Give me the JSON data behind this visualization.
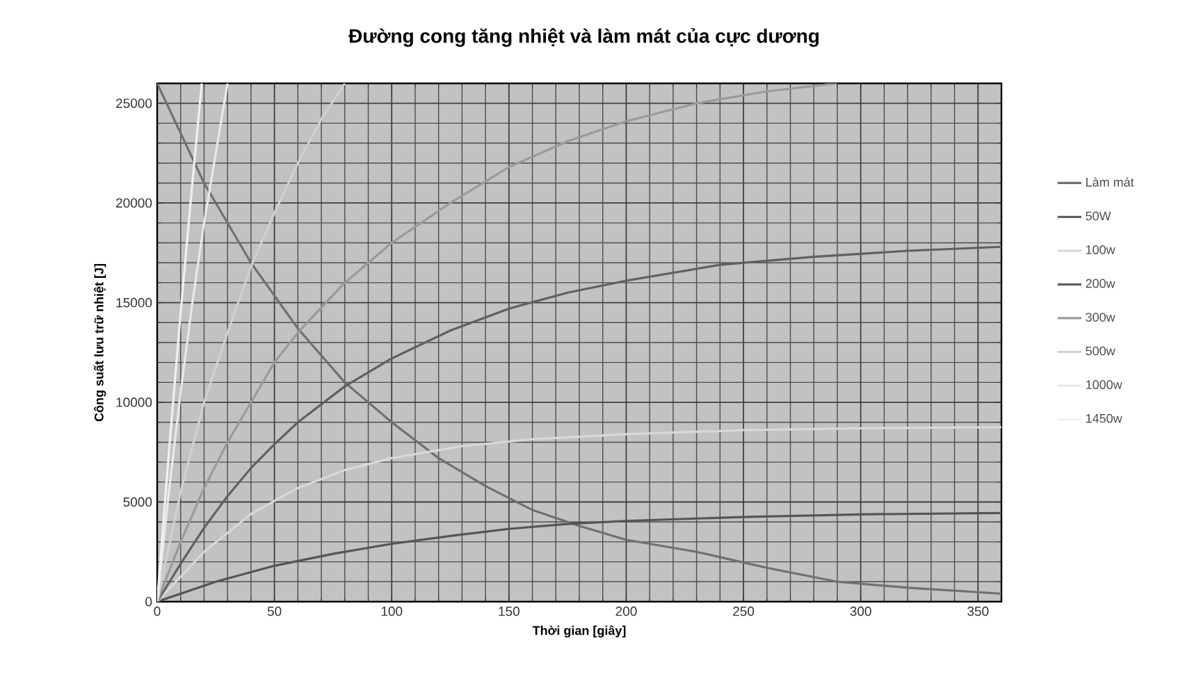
{
  "chart_data": {
    "type": "line",
    "title": "Đường cong tăng nhiệt và làm mát của cực dương",
    "xlabel": "Thời gian [giây]",
    "ylabel": "Công suất lưu trữ nhiệt [J]",
    "xlim": [
      0,
      360
    ],
    "xticks": [
      0,
      50,
      100,
      150,
      200,
      250,
      300,
      350
    ],
    "ylim": [
      0,
      26000
    ],
    "yticks": [
      0,
      5000,
      10000,
      15000,
      20000,
      25000
    ],
    "grid": true,
    "legend": "right",
    "series": [
      {
        "name": "Làm mát",
        "color": "#707070",
        "x": [
          0,
          20,
          40,
          60,
          80,
          100,
          120,
          140,
          160,
          180,
          200,
          230,
          260,
          290,
          320,
          360
        ],
        "values": [
          26000,
          21000,
          17000,
          13700,
          11000,
          9000,
          7200,
          5800,
          4600,
          3800,
          3100,
          2500,
          1700,
          1000,
          700,
          400
        ]
      },
      {
        "name": "50W",
        "color": "#555555",
        "x": [
          0,
          25,
          50,
          75,
          100,
          125,
          150,
          175,
          200,
          250,
          300,
          360
        ],
        "values": [
          0,
          1000,
          1800,
          2400,
          2900,
          3300,
          3650,
          3900,
          4050,
          4250,
          4380,
          4450
        ]
      },
      {
        "name": "100w",
        "color": "#d8d8d8",
        "x": [
          0,
          20,
          40,
          60,
          80,
          100,
          130,
          160,
          200,
          250,
          300,
          360
        ],
        "values": [
          0,
          2500,
          4400,
          5700,
          6600,
          7200,
          7800,
          8150,
          8400,
          8600,
          8700,
          8750
        ]
      },
      {
        "name": "200w",
        "color": "#606060",
        "x": [
          0,
          10,
          20,
          30,
          40,
          50,
          60,
          80,
          100,
          125,
          150,
          175,
          200,
          240,
          280,
          320,
          360
        ],
        "values": [
          0,
          1900,
          3700,
          5300,
          6700,
          7900,
          9000,
          10800,
          12200,
          13600,
          14700,
          15500,
          16100,
          16900,
          17300,
          17600,
          17800
        ]
      },
      {
        "name": "300w",
        "color": "#9a9a9a",
        "x": [
          0,
          10,
          20,
          30,
          40,
          50,
          60,
          80,
          100,
          125,
          150,
          175,
          200,
          230,
          260,
          290
        ],
        "values": [
          0,
          3000,
          5700,
          8000,
          10000,
          12000,
          13500,
          16000,
          18000,
          20000,
          21800,
          23100,
          24100,
          25000,
          25600,
          26000
        ]
      },
      {
        "name": "500w",
        "color": "#d0d0d0",
        "x": [
          0,
          10,
          20,
          30,
          40,
          50,
          60,
          70,
          80
        ],
        "values": [
          0,
          5500,
          10000,
          13500,
          16800,
          19500,
          22000,
          24200,
          26000
        ]
      },
      {
        "name": "1000w",
        "color": "#e8e8e8",
        "x": [
          0,
          5,
          10,
          15,
          20,
          25,
          30
        ],
        "values": [
          0,
          5500,
          10500,
          15000,
          19000,
          22500,
          26000
        ]
      },
      {
        "name": "1450w",
        "color": "#f0f0f0",
        "x": [
          0,
          5,
          10,
          15,
          19
        ],
        "values": [
          0,
          7500,
          14500,
          21000,
          26000
        ]
      }
    ]
  }
}
